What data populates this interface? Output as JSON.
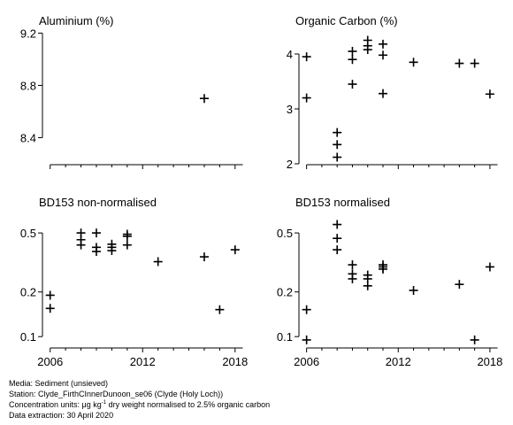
{
  "footer": {
    "media": "Media: Sediment (unsieved)",
    "station": "Station: Clyde_FirthCInnerDunoon_se06 (Clyde (Holy Loch))",
    "units_prefix": "Concentration units:  μg kg",
    "units_sup": "-1",
    "units_suffix": " dry weight normalised to 2.5% organic carbon",
    "extraction": "Data extraction: 30 April 2020"
  },
  "chart_data": [
    {
      "type": "scatter",
      "title": "Aluminium (%)",
      "xlim": [
        2005.5,
        2018.7
      ],
      "ylim": [
        8.2,
        9.25
      ],
      "scale": "linear",
      "yticks": [
        8.4,
        8.8,
        9.2
      ],
      "yticklabels": [
        "8.4",
        "8.8",
        "9.2"
      ],
      "xticks": [
        2006,
        2012,
        2018
      ],
      "xticklabels": [],
      "x": [
        2016
      ],
      "y": [
        8.7
      ]
    },
    {
      "type": "scatter",
      "title": "Organic Carbon (%)",
      "xlim": [
        2005.5,
        2018.7
      ],
      "ylim": [
        2.0,
        4.5
      ],
      "scale": "linear",
      "yticks": [
        2,
        3,
        4
      ],
      "yticklabels": [
        "2",
        "3",
        "4"
      ],
      "xticks": [
        2006,
        2012,
        2018
      ],
      "xticklabels": [],
      "x": [
        2006,
        2006,
        2008,
        2008,
        2008,
        2009,
        2009,
        2009,
        2010,
        2010,
        2010,
        2011,
        2011,
        2011,
        2013,
        2016,
        2017,
        2018
      ],
      "y": [
        3.95,
        3.2,
        2.57,
        2.35,
        2.12,
        4.05,
        3.9,
        3.45,
        4.25,
        4.15,
        4.08,
        4.18,
        3.98,
        3.28,
        3.85,
        3.83,
        3.83,
        3.27
      ]
    },
    {
      "type": "scatter",
      "title": "BD153 non-normalised",
      "xlim": [
        2005.5,
        2018.7
      ],
      "ylim": [
        0.085,
        0.65
      ],
      "scale": "log",
      "yticks": [
        0.1,
        0.2,
        0.5
      ],
      "yticklabels": [
        "0.1",
        "0.2",
        "0.5"
      ],
      "xticks": [
        2006,
        2012,
        2018
      ],
      "xticklabels": [
        "2006",
        "2012",
        "2018"
      ],
      "x": [
        2006,
        2006,
        2008,
        2008,
        2008,
        2009,
        2009,
        2009,
        2010,
        2010,
        2010,
        2011,
        2011,
        2011,
        2013,
        2016,
        2017,
        2018
      ],
      "y": [
        0.19,
        0.155,
        0.5,
        0.45,
        0.415,
        0.5,
        0.4,
        0.375,
        0.42,
        0.4,
        0.38,
        0.49,
        0.475,
        0.415,
        0.32,
        0.345,
        0.152,
        0.385
      ]
    },
    {
      "type": "scatter",
      "title": "BD153 normalised",
      "xlim": [
        2005.5,
        2018.7
      ],
      "ylim": [
        0.085,
        0.65
      ],
      "scale": "log",
      "yticks": [
        0.1,
        0.2,
        0.5
      ],
      "yticklabels": [
        "0.1",
        "0.2",
        "0.5"
      ],
      "xticks": [
        2006,
        2012,
        2018
      ],
      "xticklabels": [
        "2006",
        "2012",
        "2018"
      ],
      "x": [
        2006,
        2006,
        2008,
        2008,
        2008,
        2009,
        2009,
        2009,
        2010,
        2010,
        2010,
        2011,
        2011,
        2011,
        2013,
        2016,
        2017,
        2018
      ],
      "y": [
        0.152,
        0.095,
        0.57,
        0.46,
        0.385,
        0.305,
        0.265,
        0.245,
        0.26,
        0.245,
        0.22,
        0.305,
        0.295,
        0.285,
        0.205,
        0.225,
        0.095,
        0.295
      ]
    }
  ]
}
